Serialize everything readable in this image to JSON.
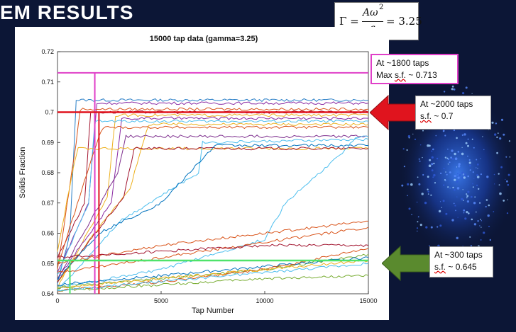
{
  "slide": {
    "title_fragment": "EM RESULTS",
    "formula": {
      "lhs": "Γ =",
      "numerator": "Aω",
      "exponent": "2",
      "denominator": "g",
      "rhs": "= 3.25"
    }
  },
  "chart_data": {
    "type": "line",
    "title": "15000 tap data (gamma=3.25)",
    "xlabel": "Tap Number",
    "ylabel": "Solids Fraction",
    "xlim": [
      0,
      15000
    ],
    "ylim": [
      0.64,
      0.72
    ],
    "xticks": [
      0,
      5000,
      10000,
      15000
    ],
    "yticks": [
      0.64,
      0.65,
      0.66,
      0.67,
      0.68,
      0.69,
      0.7,
      0.71,
      0.72
    ],
    "grid": false,
    "series": [
      {
        "color": "#2a7fc7",
        "x": [
          0,
          600,
          900,
          15000
        ],
        "y": [
          0.643,
          0.66,
          0.704,
          0.704
        ]
      },
      {
        "color": "#8a2aa3",
        "x": [
          0,
          1500,
          1900,
          15000
        ],
        "y": [
          0.647,
          0.67,
          0.703,
          0.703
        ]
      },
      {
        "color": "#d95319",
        "x": [
          0,
          900,
          1100,
          15000
        ],
        "y": [
          0.648,
          0.69,
          0.701,
          0.701
        ]
      },
      {
        "color": "#a2142f",
        "x": [
          0,
          1300,
          1600,
          15000
        ],
        "y": [
          0.652,
          0.67,
          0.7,
          0.7
        ]
      },
      {
        "color": "#edb120",
        "x": [
          0,
          2400,
          2800,
          15000
        ],
        "y": [
          0.642,
          0.672,
          0.699,
          0.699
        ]
      },
      {
        "color": "#8a2aa3",
        "x": [
          0,
          2600,
          3100,
          15000
        ],
        "y": [
          0.645,
          0.67,
          0.698,
          0.698
        ]
      },
      {
        "color": "#4dbeee",
        "x": [
          0,
          1500,
          1800,
          15000
        ],
        "y": [
          0.646,
          0.67,
          0.697,
          0.697
        ]
      },
      {
        "color": "#edb120",
        "x": [
          0,
          3500,
          4400,
          15000
        ],
        "y": [
          0.644,
          0.675,
          0.696,
          0.696
        ]
      },
      {
        "color": "#d95319",
        "x": [
          0,
          1900,
          2200,
          15000
        ],
        "y": [
          0.649,
          0.69,
          0.695,
          0.695
        ]
      },
      {
        "color": "#7e2f8e",
        "x": [
          0,
          2900,
          3300,
          15000
        ],
        "y": [
          0.645,
          0.68,
          0.692,
          0.692
        ]
      },
      {
        "color": "#edb120",
        "x": [
          0,
          800,
          1000,
          15000
        ],
        "y": [
          0.654,
          0.683,
          0.688,
          0.688
        ]
      },
      {
        "color": "#a2142f",
        "x": [
          0,
          3200,
          3700,
          15000
        ],
        "y": [
          0.644,
          0.672,
          0.688,
          0.688
        ]
      },
      {
        "color": "#4dbeee",
        "x": [
          0,
          3000,
          6800,
          7000,
          15000
        ],
        "y": [
          0.641,
          0.664,
          0.68,
          0.69,
          0.691
        ]
      },
      {
        "color": "#0072bd",
        "x": [
          0,
          2000,
          5000,
          7600,
          15000
        ],
        "y": [
          0.645,
          0.66,
          0.67,
          0.689,
          0.689
        ]
      },
      {
        "color": "#4dbeee",
        "x": [
          0,
          5000,
          10000,
          11000,
          13500,
          14500,
          15000
        ],
        "y": [
          0.642,
          0.648,
          0.658,
          0.67,
          0.685,
          0.692,
          0.692
        ]
      },
      {
        "color": "#d95319",
        "x": [
          0,
          5000,
          10000,
          15000
        ],
        "y": [
          0.65,
          0.656,
          0.66,
          0.664
        ]
      },
      {
        "color": "#d95319",
        "x": [
          0,
          5000,
          10000,
          15000
        ],
        "y": [
          0.647,
          0.652,
          0.657,
          0.662
        ]
      },
      {
        "color": "#a2142f",
        "x": [
          0,
          5000,
          10000,
          15000
        ],
        "y": [
          0.652,
          0.654,
          0.656,
          0.656
        ]
      },
      {
        "color": "#77ac30",
        "x": [
          0,
          5000,
          10000,
          15000
        ],
        "y": [
          0.642,
          0.645,
          0.648,
          0.653
        ]
      },
      {
        "color": "#0072bd",
        "x": [
          0,
          5000,
          10000,
          15000
        ],
        "y": [
          0.643,
          0.646,
          0.649,
          0.652
        ]
      },
      {
        "color": "#d95319",
        "x": [
          0,
          5000,
          10000,
          15000
        ],
        "y": [
          0.641,
          0.644,
          0.648,
          0.655
        ]
      },
      {
        "color": "#77ac30",
        "x": [
          0,
          5000,
          10000,
          15000
        ],
        "y": [
          0.641,
          0.643,
          0.645,
          0.646
        ]
      },
      {
        "color": "#4dbeee",
        "x": [
          0,
          5000,
          10000,
          15000
        ],
        "y": [
          0.641,
          0.644,
          0.647,
          0.65
        ]
      },
      {
        "color": "#edb120",
        "x": [
          0,
          5000,
          10000,
          15000
        ],
        "y": [
          0.642,
          0.645,
          0.648,
          0.651
        ]
      }
    ],
    "annotations": [
      {
        "text_lines": [
          "At ~1800 taps",
          "Max s.f. ~ 0.713"
        ],
        "color": "#e040c8",
        "x": 1800,
        "y": 0.713
      },
      {
        "text_lines": [
          "At ~2000 taps",
          "s.f. ~ 0.7"
        ],
        "color": "#e0141e",
        "x": 2000,
        "y": 0.7
      },
      {
        "text_lines": [
          "At ~300 taps",
          "s.f. ~ 0.645"
        ],
        "color": "#4fe36a",
        "x": 300,
        "y": 0.645
      }
    ]
  },
  "colors": {
    "background": "#0c1636",
    "pink_marker": "#e040c8",
    "red_marker": "#e0141e",
    "green_marker": "#4fe36a",
    "green_arrow": "#5a8a2e",
    "red_arrow": "#e0141e"
  }
}
